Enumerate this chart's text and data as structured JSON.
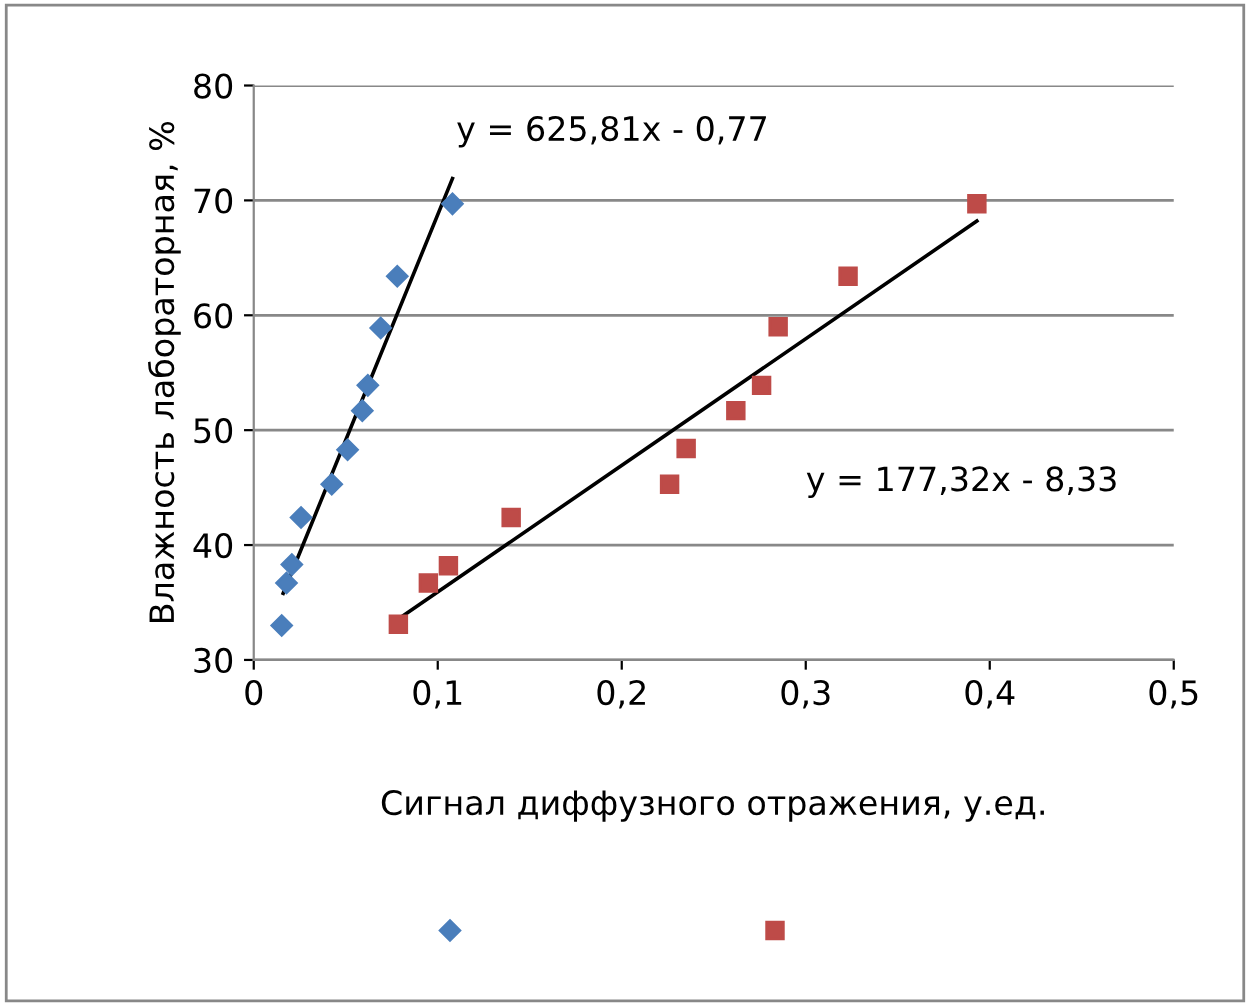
{
  "chart_data": {
    "type": "scatter",
    "xlabel": "Сигнал диффузного отражения, у.ед.",
    "ylabel": "Влажность лабораторная, %",
    "xlim": [
      0,
      0.5
    ],
    "xticks": [
      {
        "value": 0,
        "label": "0"
      },
      {
        "value": 0.1,
        "label": "0,1"
      },
      {
        "value": 0.2,
        "label": "0,2"
      },
      {
        "value": 0.3,
        "label": "0,3"
      },
      {
        "value": 0.4,
        "label": "0,4"
      },
      {
        "value": 0.5,
        "label": "0,5"
      }
    ],
    "ylim": [
      30,
      80
    ],
    "yticks": [
      30,
      40,
      50,
      60,
      70,
      80
    ],
    "grid": "y",
    "series": [
      {
        "marker": "diamond",
        "color": "#4a7ebb",
        "x": [
          0.0152,
          0.0178,
          0.0207,
          0.0257,
          0.0424,
          0.051,
          0.059,
          0.062,
          0.069,
          0.078,
          0.108
        ],
        "values": [
          33.0,
          36.7,
          38.3,
          42.4,
          45.3,
          48.3,
          51.7,
          53.9,
          58.9,
          63.4,
          69.7
        ]
      },
      {
        "marker": "square",
        "color": "#be4b48",
        "x": [
          0.0786,
          0.0949,
          0.1058,
          0.1399,
          0.226,
          0.235,
          0.262,
          0.276,
          0.285,
          0.323,
          0.393
        ],
        "values": [
          33.1,
          36.7,
          38.2,
          42.4,
          45.3,
          48.4,
          51.7,
          53.9,
          59.0,
          63.4,
          69.7
        ]
      },
      {
        "type": "line",
        "color": "#000000",
        "x": [
          0.016,
          0.108
        ],
        "values": [
          35.8,
          71.9
        ]
      },
      {
        "type": "line",
        "color": "#000000",
        "x": [
          0.079,
          0.393
        ],
        "values": [
          33.6,
          68.2
        ]
      }
    ],
    "annotations": [
      "y = 625,81x - 0,77",
      "y = 177,32x - 8,33"
    ]
  }
}
